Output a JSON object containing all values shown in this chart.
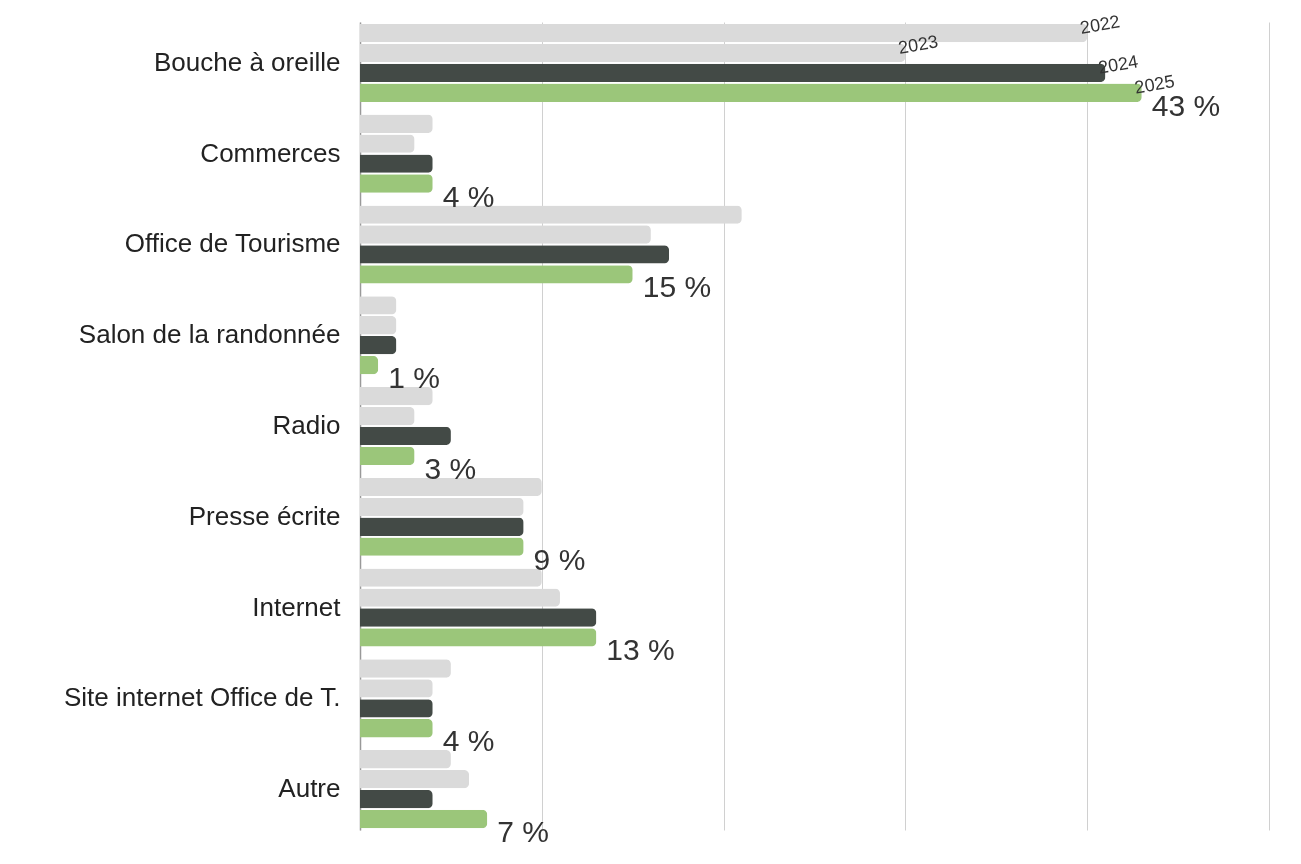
{
  "chart_data": {
    "type": "bar",
    "orientation": "horizontal",
    "categories": [
      "Bouche à oreille",
      "Commerces",
      "Office de Tourisme",
      "Salon de la randonnée",
      "Radio",
      "Presse écrite",
      "Internet",
      "Site internet Office de T.",
      "Autre"
    ],
    "series": [
      {
        "name": "2022",
        "color": "#dadada",
        "values": [
          40,
          4,
          21,
          2,
          4,
          10,
          10,
          5,
          5
        ]
      },
      {
        "name": "2023",
        "color": "#dadada",
        "values": [
          30,
          3,
          16,
          2,
          3,
          9,
          11,
          4,
          6
        ]
      },
      {
        "name": "2024",
        "color": "#434a46",
        "values": [
          41,
          4,
          17,
          2,
          5,
          9,
          13,
          4,
          4
        ]
      },
      {
        "name": "2025",
        "color": "#9bc67a",
        "values": [
          43,
          4,
          15,
          1,
          3,
          9,
          13,
          4,
          7
        ],
        "value_labels": [
          "43 %",
          "4 %",
          "15 %",
          "1 %",
          "3 %",
          "9 %",
          "13 %",
          "4 %",
          "7 %"
        ]
      }
    ],
    "xlim": [
      0,
      50
    ],
    "xticks": [
      {
        "value": 0,
        "label": null
      },
      {
        "value": 10,
        "label": null
      },
      {
        "value": 20,
        "label": null
      },
      {
        "value": 30,
        "label": null
      },
      {
        "value": 40,
        "label": null
      },
      {
        "value": 50,
        "label": null
      }
    ],
    "tick_labels": "y",
    "grid": "x",
    "legend": false
  }
}
